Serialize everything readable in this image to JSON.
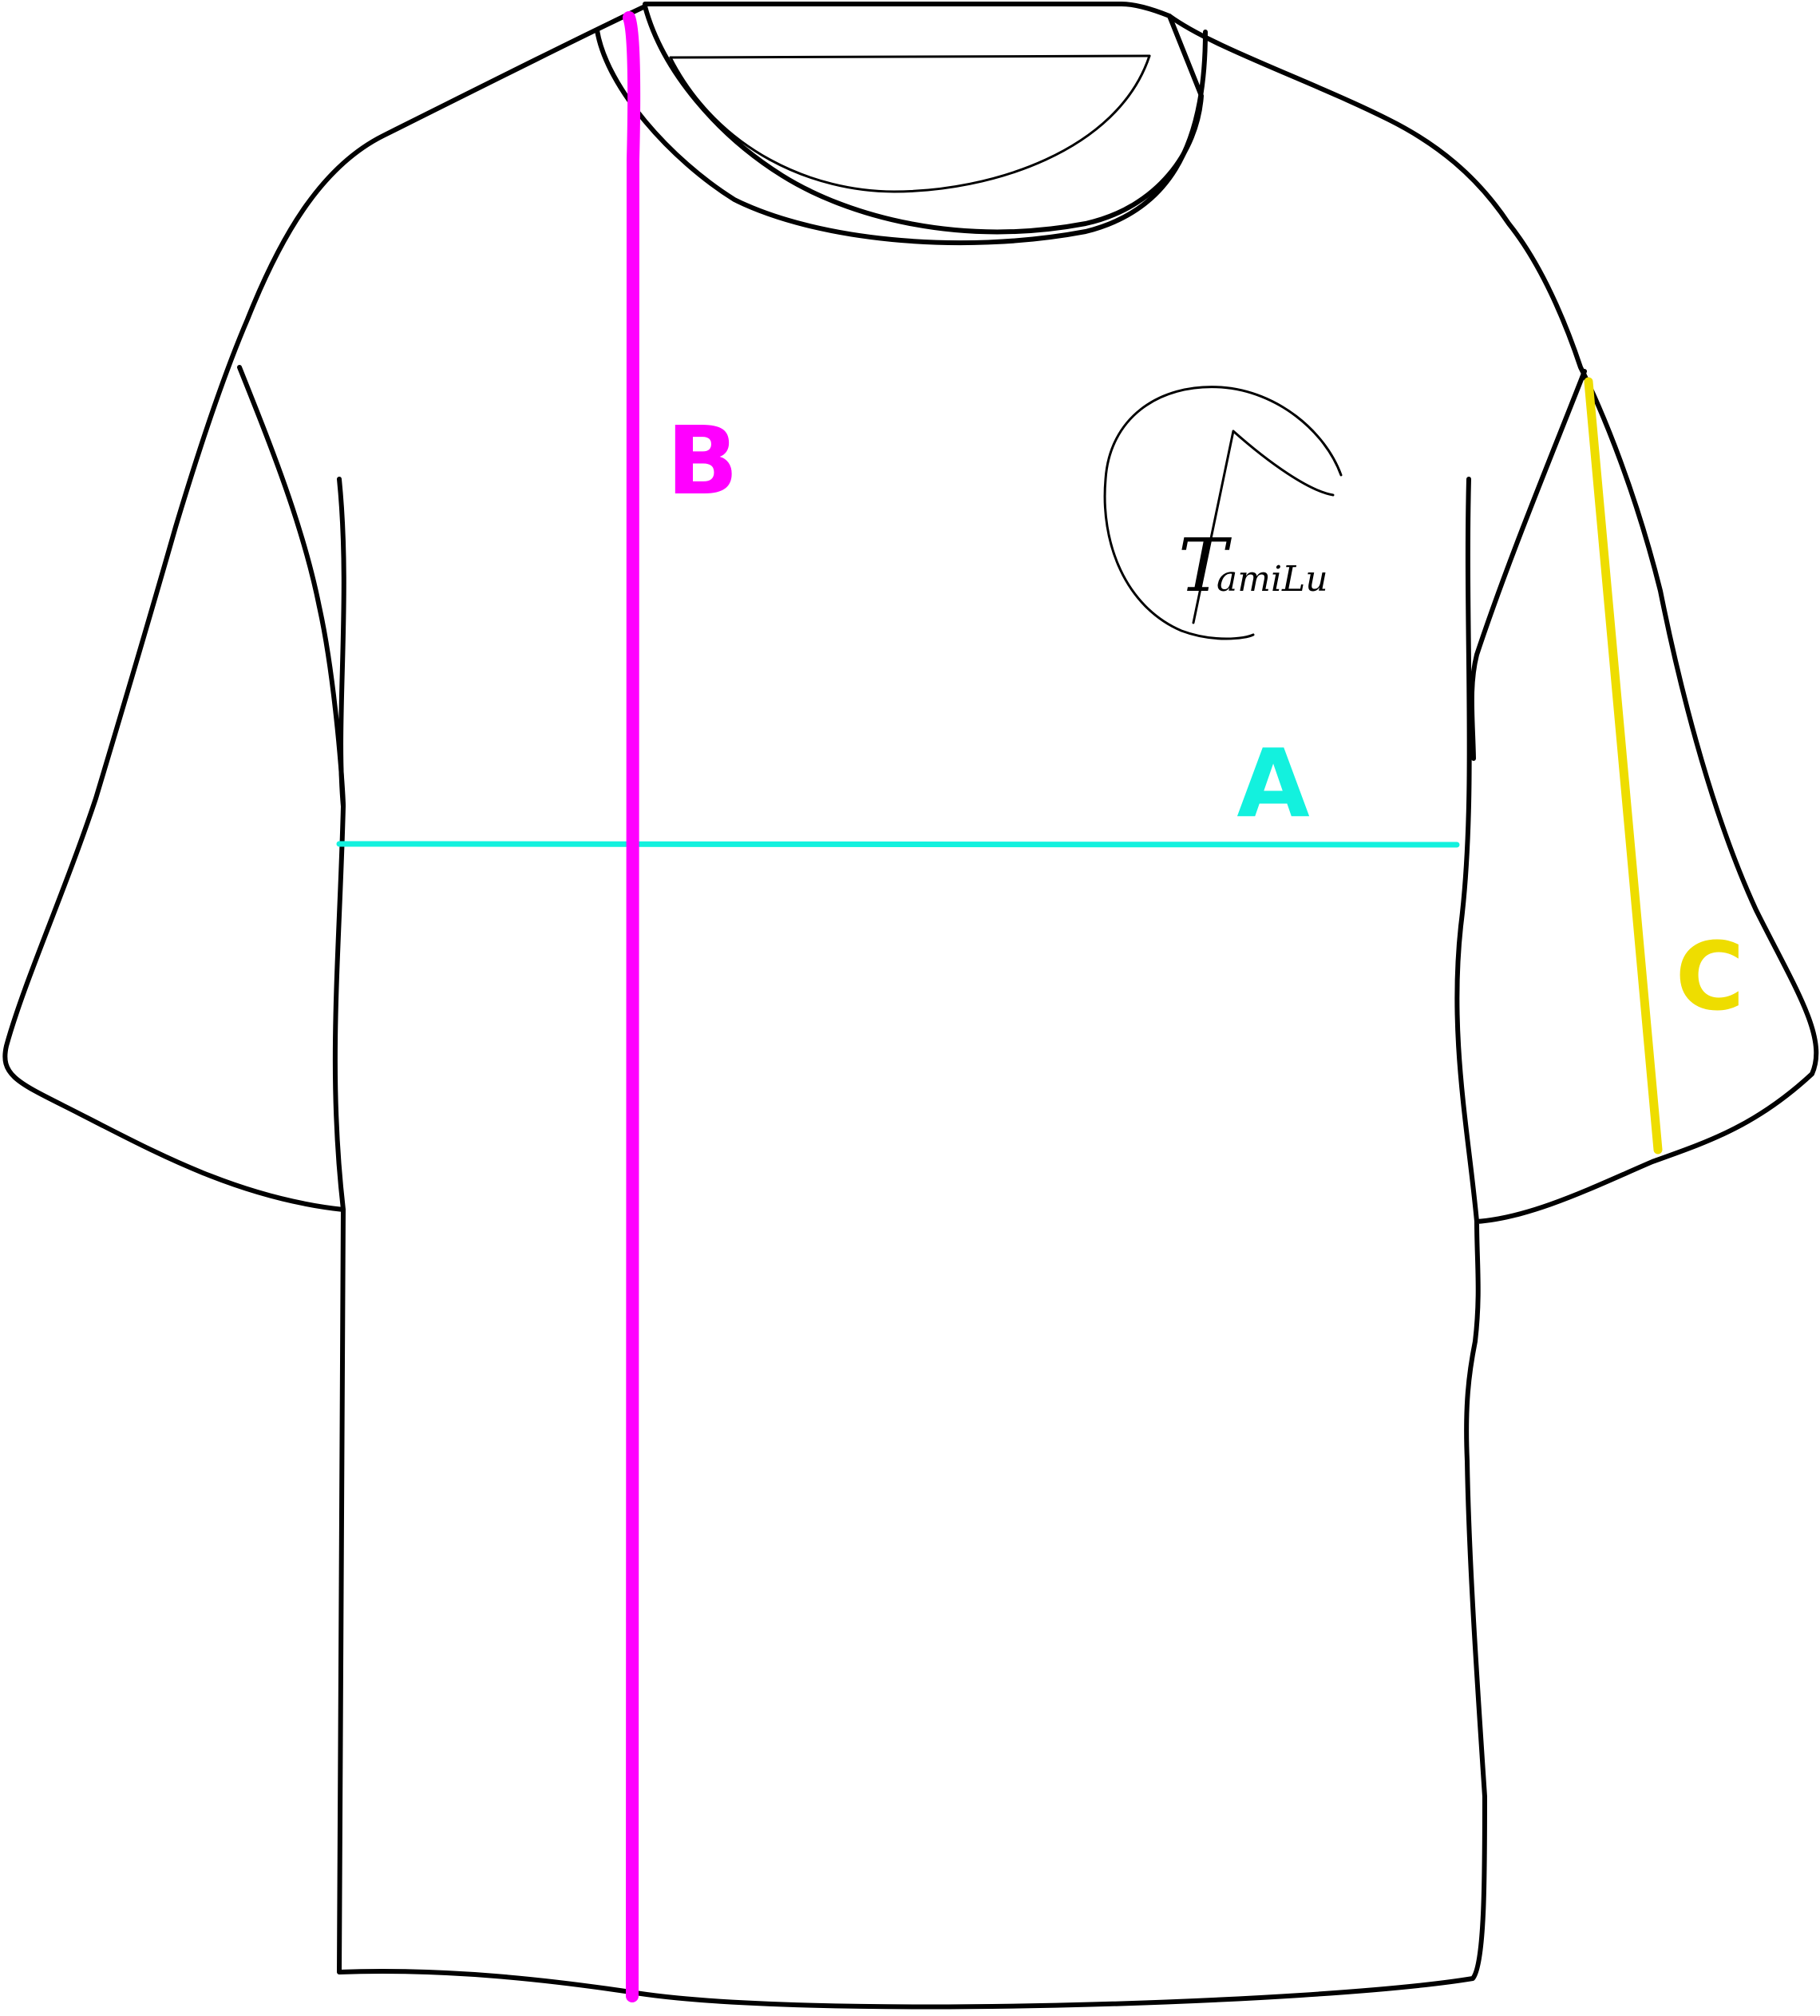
{
  "diagram": {
    "subject": "t-shirt-size-guide",
    "measurements": [
      {
        "id": "A",
        "label": "A",
        "color": "#13F1DE"
      },
      {
        "id": "B",
        "label": "B",
        "color": "#FF00FF"
      },
      {
        "id": "C",
        "label": "C",
        "color": "#EEDD00"
      }
    ],
    "logo": {
      "text": "amiLu",
      "initial": "T"
    },
    "outline_color": "#000000",
    "background": "#FFFFFF"
  }
}
